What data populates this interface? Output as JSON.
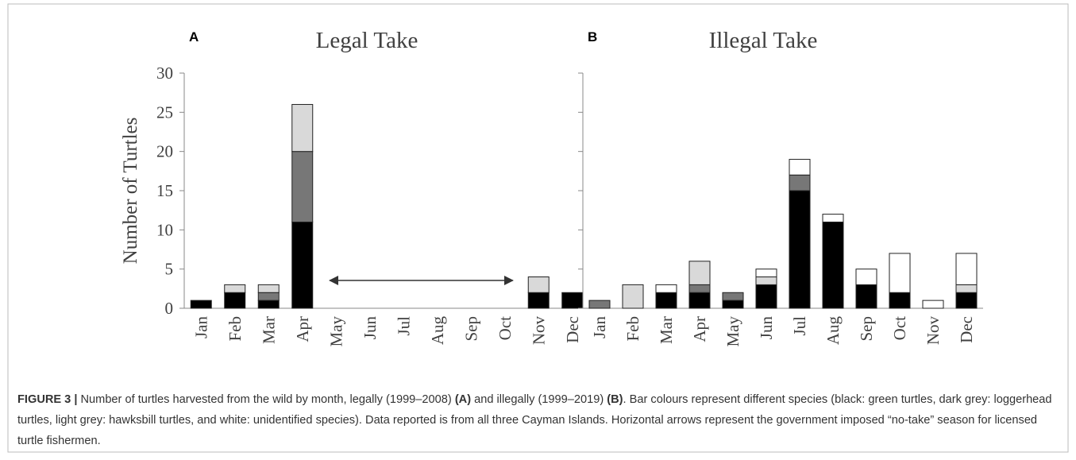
{
  "chart_data": [
    {
      "type": "bar",
      "stacked": true,
      "panel": "A",
      "title": "Legal Take",
      "y_label": "Number of Turtles",
      "categories": [
        "Jan",
        "Feb",
        "Mar",
        "Apr",
        "May",
        "Jun",
        "Jul",
        "Aug",
        "Sep",
        "Oct",
        "Nov",
        "Dec"
      ],
      "series": [
        {
          "color": "#000000",
          "values": [
            1,
            2,
            1,
            11,
            0,
            0,
            0,
            0,
            0,
            0,
            2,
            2
          ]
        },
        {
          "color": "#777777",
          "values": [
            0,
            0,
            1,
            9,
            0,
            0,
            0,
            0,
            0,
            0,
            0,
            0
          ]
        },
        {
          "color": "#d9d9d9",
          "values": [
            0,
            1,
            1,
            6,
            0,
            0,
            0,
            0,
            0,
            0,
            2,
            0
          ]
        },
        {
          "color": "#ffffff",
          "values": [
            0,
            0,
            0,
            0,
            0,
            0,
            0,
            0,
            0,
            0,
            0,
            0
          ]
        }
      ],
      "ylim": [
        0,
        30
      ],
      "yticks": [
        0,
        5,
        10,
        15,
        20,
        25,
        30
      ],
      "show_ytick_labels": true,
      "arrow": true
    },
    {
      "type": "bar",
      "stacked": true,
      "panel": "B",
      "title": "Illegal Take",
      "categories": [
        "Jan",
        "Feb",
        "Mar",
        "Apr",
        "May",
        "Jun",
        "Jul",
        "Aug",
        "Sep",
        "Oct",
        "Nov",
        "Dec"
      ],
      "series": [
        {
          "color": "#000000",
          "values": [
            0,
            0,
            2,
            2,
            1,
            3,
            15,
            11,
            3,
            2,
            0,
            2
          ]
        },
        {
          "color": "#777777",
          "values": [
            1,
            0,
            0,
            1,
            1,
            0,
            2,
            0,
            0,
            0,
            0,
            0
          ]
        },
        {
          "color": "#d9d9d9",
          "values": [
            0,
            3,
            0,
            3,
            0,
            1,
            0,
            0,
            0,
            0,
            0,
            1
          ]
        },
        {
          "color": "#ffffff",
          "values": [
            0,
            0,
            1,
            0,
            0,
            1,
            2,
            1,
            2,
            5,
            1,
            4
          ]
        }
      ],
      "ylim": [
        0,
        30
      ],
      "yticks": [
        0,
        5,
        10,
        15,
        20,
        25,
        30
      ],
      "show_ytick_labels": false,
      "arrow": false
    }
  ],
  "caption": [
    "FIGURE 3 |",
    " Number of turtles harvested from the wild by month, legally (1999–2008) ",
    "(A)",
    " and illegally (1999–2019) ",
    "(B)",
    ". Bar colours represent different species (black: green turtles, dark grey: loggerhead turtles, light grey: hawksbill turtles, and white: unidentified species). Data reported is from all three Cayman Islands. Horizontal arrows represent the government imposed “no-take” season for licensed turtle fishermen."
  ]
}
